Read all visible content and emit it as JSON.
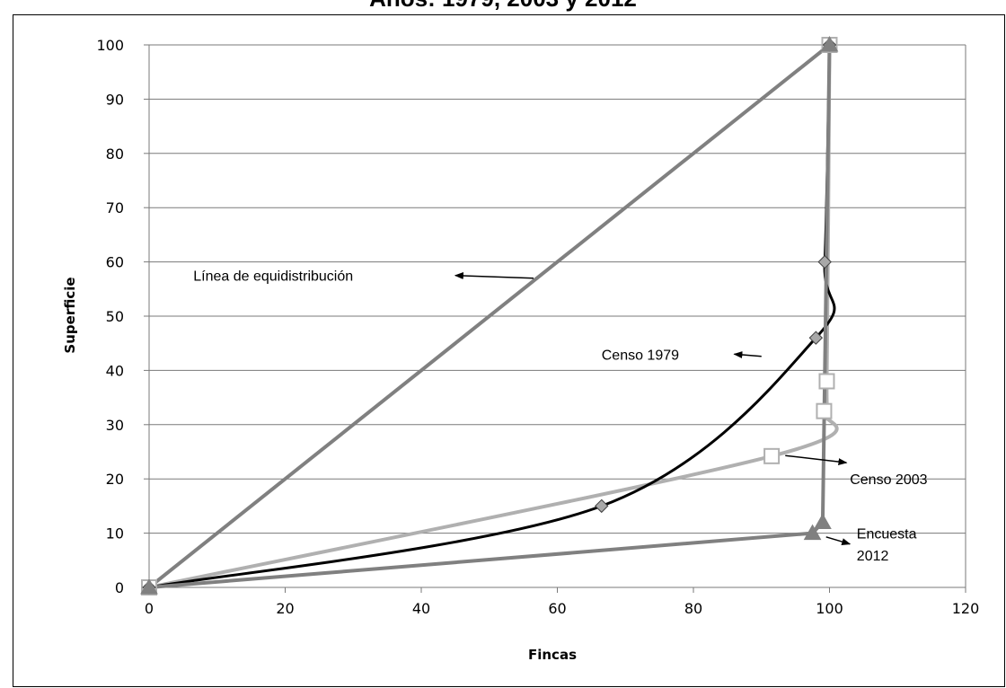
{
  "chart_data": {
    "type": "line",
    "title": "Años: 1979, 2003 y 2012",
    "xlabel": "Fincas",
    "ylabel": "Superficie",
    "xlim": [
      0,
      120
    ],
    "ylim": [
      0,
      100
    ],
    "x_ticks": [
      "0",
      "20",
      "40",
      "60",
      "80",
      "100",
      "120"
    ],
    "y_ticks": [
      "0",
      "10",
      "20",
      "30",
      "40",
      "50",
      "60",
      "70",
      "80",
      "90",
      "100"
    ],
    "grid": "horizontal",
    "legend": "none",
    "series": [
      {
        "name": "Línea de equidistribución",
        "color": "#808080",
        "marker": "square-x",
        "points": [
          [
            0,
            0
          ],
          [
            100,
            100
          ]
        ]
      },
      {
        "name": "Censo 1979",
        "color": "#000000",
        "marker": "diamond",
        "points": [
          [
            0,
            0
          ],
          [
            66.5,
            15
          ],
          [
            98,
            46
          ],
          [
            99.3,
            60
          ],
          [
            100,
            100
          ]
        ]
      },
      {
        "name": "Censo 2003",
        "color": "#b0b0b0",
        "marker": "square-open",
        "points": [
          [
            0,
            0
          ],
          [
            91.5,
            24.2
          ],
          [
            99.2,
            32.5
          ],
          [
            99.6,
            38
          ],
          [
            100,
            100
          ]
        ]
      },
      {
        "name": "Encuesta 2012",
        "color": "#808080",
        "marker": "triangle",
        "points": [
          [
            0,
            0
          ],
          [
            97.5,
            10
          ],
          [
            99,
            12
          ],
          [
            100,
            100
          ]
        ]
      }
    ],
    "annotations": [
      {
        "text": "Línea de equidistribución",
        "x": 6.5,
        "y": 57.5,
        "arrow_from": [
          56.5,
          57
        ],
        "arrow_to": [
          45,
          57.5
        ]
      },
      {
        "text": "Censo 1979",
        "x": 66.5,
        "y": 43,
        "arrow_from": [
          90,
          42.6
        ],
        "arrow_to": [
          86,
          43
        ]
      },
      {
        "text": "Censo 2003",
        "x": 103,
        "y": 20,
        "arrow_from": [
          93.5,
          24.3
        ],
        "arrow_to": [
          102.5,
          23
        ]
      },
      {
        "text": "Encuesta",
        "x": 104,
        "y": 10,
        "arrow_from": null,
        "arrow_to": null
      },
      {
        "text": "2012",
        "x": 104,
        "y": 6,
        "arrow_from": [
          99.5,
          9.3
        ],
        "arrow_to": [
          103,
          8
        ]
      }
    ]
  }
}
